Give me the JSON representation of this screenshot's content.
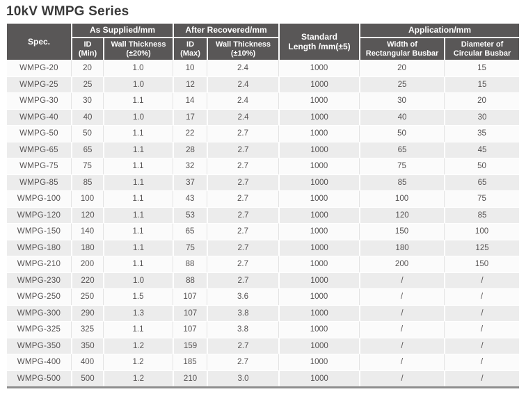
{
  "title": "10kV WMPG Series",
  "colors": {
    "header_bg": "#595757",
    "header_text": "#ffffff",
    "row_alt": "#ececec",
    "row_base": "#fbfbfb",
    "body_text": "#555252",
    "bottom_border": "#8e8e8e"
  },
  "table": {
    "spec_header": "Spec.",
    "groups": [
      "As Supplied/mm",
      "After Recovered/mm",
      "Application/mm"
    ],
    "standard_length": [
      "Standard",
      "Length /mm(±5)"
    ],
    "sub": [
      [
        "ID",
        "(Min)"
      ],
      [
        "Wall Thickness",
        "(±20%)"
      ],
      [
        "ID",
        "(Max)"
      ],
      [
        "Wall Thickness",
        "(±10%)"
      ],
      [
        "Width of",
        "Rectangular Busbar"
      ],
      [
        "Diameter of",
        "Circular Busbar"
      ]
    ],
    "rows": [
      [
        "WMPG-20",
        "20",
        "1.0",
        "10",
        "2.4",
        "1000",
        "20",
        "15"
      ],
      [
        "WMPG-25",
        "25",
        "1.0",
        "12",
        "2.4",
        "1000",
        "25",
        "15"
      ],
      [
        "WMPG-30",
        "30",
        "1.1",
        "14",
        "2.4",
        "1000",
        "30",
        "20"
      ],
      [
        "WMPG-40",
        "40",
        "1.0",
        "17",
        "2.4",
        "1000",
        "40",
        "30"
      ],
      [
        "WMPG-50",
        "50",
        "1.1",
        "22",
        "2.7",
        "1000",
        "50",
        "35"
      ],
      [
        "WMPG-65",
        "65",
        "1.1",
        "28",
        "2.7",
        "1000",
        "65",
        "45"
      ],
      [
        "WMPG-75",
        "75",
        "1.1",
        "32",
        "2.7",
        "1000",
        "75",
        "50"
      ],
      [
        "WMPG-85",
        "85",
        "1.1",
        "37",
        "2.7",
        "1000",
        "85",
        "65"
      ],
      [
        "WMPG-100",
        "100",
        "1.1",
        "43",
        "2.7",
        "1000",
        "100",
        "75"
      ],
      [
        "WMPG-120",
        "120",
        "1.1",
        "53",
        "2.7",
        "1000",
        "120",
        "85"
      ],
      [
        "WMPG-150",
        "140",
        "1.1",
        "65",
        "2.7",
        "1000",
        "150",
        "100"
      ],
      [
        "WMPG-180",
        "180",
        "1.1",
        "75",
        "2.7",
        "1000",
        "180",
        "125"
      ],
      [
        "WMPG-210",
        "200",
        "1.1",
        "88",
        "2.7",
        "1000",
        "200",
        "150"
      ],
      [
        "WMPG-230",
        "220",
        "1.0",
        "88",
        "2.7",
        "1000",
        "/",
        "/"
      ],
      [
        "WMPG-250",
        "250",
        "1.5",
        "107",
        "3.6",
        "1000",
        "/",
        "/"
      ],
      [
        "WMPG-300",
        "290",
        "1.3",
        "107",
        "3.8",
        "1000",
        "/",
        "/"
      ],
      [
        "WMPG-325",
        "325",
        "1.1",
        "107",
        "3.8",
        "1000",
        "/",
        "/"
      ],
      [
        "WMPG-350",
        "350",
        "1.2",
        "159",
        "2.7",
        "1000",
        "/",
        "/"
      ],
      [
        "WMPG-400",
        "400",
        "1.2",
        "185",
        "2.7",
        "1000",
        "/",
        "/"
      ],
      [
        "WMPG-500",
        "500",
        "1.2",
        "210",
        "3.0",
        "1000",
        "/",
        "/"
      ]
    ]
  }
}
